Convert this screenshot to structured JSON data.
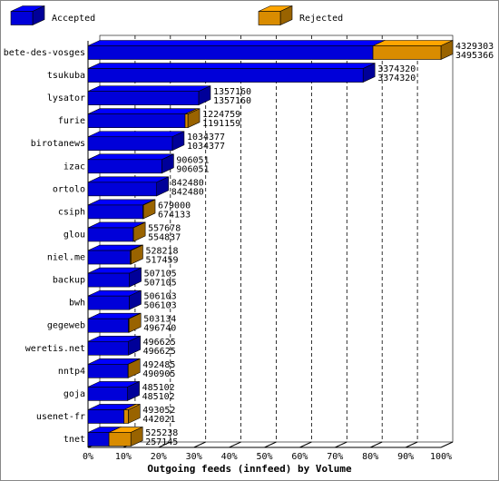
{
  "chart_data": {
    "type": "bar3d-stacked-horizontal",
    "x_label": "Outgoing feeds (innfeed) by Volume",
    "categories": [
      "bete-des-vosges",
      "tsukuba",
      "lysator",
      "furie",
      "birotanews",
      "izac",
      "ortolo",
      "csiph",
      "glou",
      "niel.me",
      "backup",
      "bwh",
      "gegeweb",
      "weretis.net",
      "nntp4",
      "goja",
      "usenet-fr",
      "tnet"
    ],
    "totals": [
      4329303,
      3374320,
      1357160,
      1224759,
      1034377,
      906051,
      842480,
      679000,
      557678,
      528218,
      507105,
      506103,
      503134,
      496625,
      492485,
      485102,
      493052,
      525238
    ],
    "series": [
      {
        "name": "Accepted",
        "color": "#0000ff",
        "values": [
          3495366,
          3374320,
          1357160,
          1191159,
          1034377,
          906051,
          842480,
          674133,
          554837,
          517459,
          507105,
          506103,
          496740,
          496625,
          490905,
          485102,
          442021,
          257145
        ]
      },
      {
        "name": "Rejected",
        "color": "#ffa500",
        "values": [
          833937,
          0,
          0,
          33600,
          0,
          0,
          0,
          4867,
          2841,
          10759,
          0,
          0,
          6394,
          0,
          1580,
          0,
          51031,
          268093
        ]
      }
    ],
    "xlim": [
      0,
      4329303
    ],
    "xticks": [
      {
        "value": 0,
        "label": "0%"
      },
      {
        "value": 432930.3,
        "label": "10%"
      },
      {
        "value": 865860.6,
        "label": "20%"
      },
      {
        "value": 1298790.9,
        "label": "30%"
      },
      {
        "value": 1731721.2,
        "label": "40%"
      },
      {
        "value": 2164651.5,
        "label": "50%"
      },
      {
        "value": 2597581.8,
        "label": "60%"
      },
      {
        "value": 3030512.1,
        "label": "70%"
      },
      {
        "value": 3463442.4,
        "label": "80%"
      },
      {
        "value": 3896372.7,
        "label": "90%"
      },
      {
        "value": 4329303,
        "label": "100%"
      }
    ],
    "grid": true
  }
}
